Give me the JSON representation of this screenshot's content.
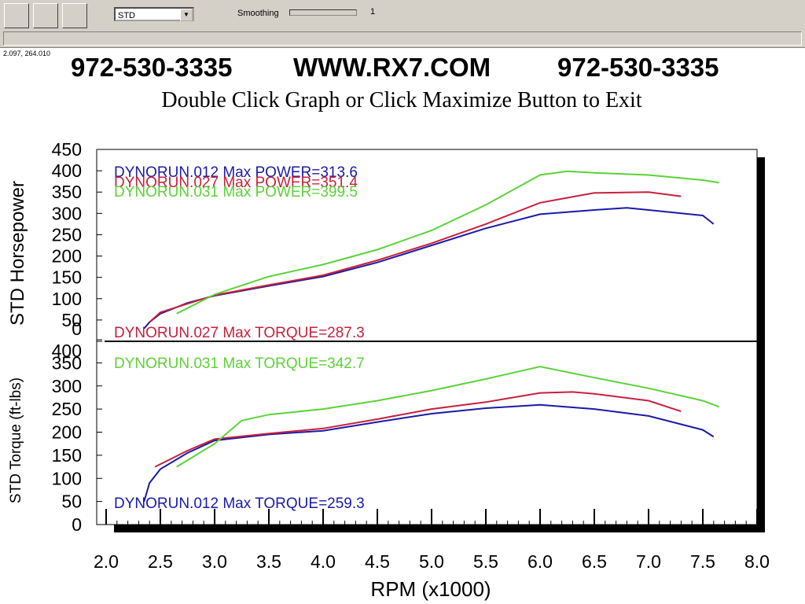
{
  "toolbar": {
    "dropdown": "STD",
    "smoothing_label": "Smoothing",
    "smoothing_value": 1
  },
  "status": "2.097, 264.010",
  "header": {
    "phone_left": "972-530-3335",
    "website": "WWW.RX7.COM",
    "phone_right": "972-530-3335",
    "instruction": "Double Click Graph or Click Maximize Button to Exit"
  },
  "chart_data": [
    {
      "type": "line",
      "ylabel": "STD Horsepower",
      "ylim": [
        0,
        450
      ],
      "yticks": [
        450,
        400,
        350,
        300,
        250,
        200,
        150,
        100,
        50,
        0
      ],
      "xlim": [
        2,
        8
      ],
      "series": [
        {
          "color": "#1a1aa8",
          "x": [
            2.35,
            2.4,
            2.5,
            2.75,
            3.0,
            3.5,
            4.0,
            4.5,
            5.0,
            5.5,
            6.0,
            6.5,
            6.8,
            7.0,
            7.5,
            7.6
          ],
          "values": [
            30,
            45,
            65,
            90,
            107,
            130,
            152,
            185,
            225,
            265,
            298,
            308,
            313,
            308,
            295,
            275
          ]
        },
        {
          "color": "#c8203c",
          "x": [
            2.4,
            2.5,
            3.0,
            3.5,
            4.0,
            4.5,
            5.0,
            5.5,
            6.0,
            6.5,
            7.0,
            7.3
          ],
          "values": [
            45,
            68,
            108,
            132,
            155,
            190,
            230,
            275,
            325,
            348,
            350,
            340
          ]
        },
        {
          "color": "#5cd238",
          "x": [
            2.65,
            3.0,
            3.5,
            4.0,
            4.5,
            5.0,
            5.5,
            6.0,
            6.25,
            6.5,
            7.0,
            7.5,
            7.65
          ],
          "values": [
            65,
            110,
            152,
            180,
            215,
            260,
            320,
            390,
            399,
            395,
            390,
            378,
            372
          ]
        }
      ],
      "annotations": [
        {
          "text": "DYNORUN.012  Max POWER=313.6",
          "color": "#1a1aa8"
        },
        {
          "text": "DYNORUN.027  Max POWER=351.4",
          "color": "#c8203c"
        },
        {
          "text": "DYNORUN.031  Max POWER=399.5",
          "color": "#5cd238"
        }
      ]
    },
    {
      "type": "line",
      "ylabel": "STD Torque (ft-lbs)",
      "xlabel": "RPM (x1000)",
      "ylim": [
        0,
        400
      ],
      "yticks": [
        400,
        350,
        300,
        250,
        200,
        150,
        100,
        50,
        0
      ],
      "xlim": [
        2,
        8
      ],
      "xticks": [
        {
          "value": 2,
          "label": "2.0"
        },
        {
          "value": 2.5,
          "label": "2.5"
        },
        {
          "value": 3,
          "label": "3.0"
        },
        {
          "value": 3.5,
          "label": "3.5"
        },
        {
          "value": 4,
          "label": "4.0"
        },
        {
          "value": 4.5,
          "label": "4.5"
        },
        {
          "value": 5,
          "label": "5.0"
        },
        {
          "value": 5.5,
          "label": "5.5"
        },
        {
          "value": 6,
          "label": "6.0"
        },
        {
          "value": 6.5,
          "label": "6.5"
        },
        {
          "value": 7,
          "label": "7.0"
        },
        {
          "value": 7.5,
          "label": "7.5"
        },
        {
          "value": 8,
          "label": "8.0"
        }
      ],
      "series": [
        {
          "color": "#1a1aa8",
          "x": [
            2.35,
            2.4,
            2.5,
            2.75,
            3.0,
            3.5,
            4.0,
            4.5,
            5.0,
            5.5,
            6.0,
            6.5,
            7.0,
            7.5,
            7.6
          ],
          "values": [
            50,
            90,
            120,
            155,
            182,
            195,
            203,
            222,
            240,
            252,
            259,
            250,
            235,
            205,
            190
          ]
        },
        {
          "color": "#c8203c",
          "x": [
            2.45,
            2.75,
            3.0,
            3.5,
            4.0,
            4.5,
            5.0,
            5.5,
            6.0,
            6.3,
            6.5,
            7.0,
            7.3
          ],
          "values": [
            125,
            160,
            185,
            197,
            208,
            228,
            250,
            265,
            285,
            287,
            283,
            268,
            245
          ]
        },
        {
          "color": "#5cd238",
          "x": [
            2.65,
            3.0,
            3.25,
            3.5,
            4.0,
            4.5,
            5.0,
            5.5,
            6.0,
            6.5,
            7.0,
            7.5,
            7.65
          ],
          "values": [
            125,
            175,
            225,
            238,
            250,
            268,
            290,
            315,
            342,
            318,
            295,
            268,
            255
          ]
        }
      ],
      "annotations": [
        {
          "text": "DYNORUN.027  Max TORQUE=287.3",
          "color": "#c8203c"
        },
        {
          "text": "DYNORUN.031  Max TORQUE=342.7",
          "color": "#5cd238"
        },
        {
          "text": "DYNORUN.012  Max TORQUE=259.3",
          "color": "#1a1aa8"
        }
      ]
    }
  ]
}
